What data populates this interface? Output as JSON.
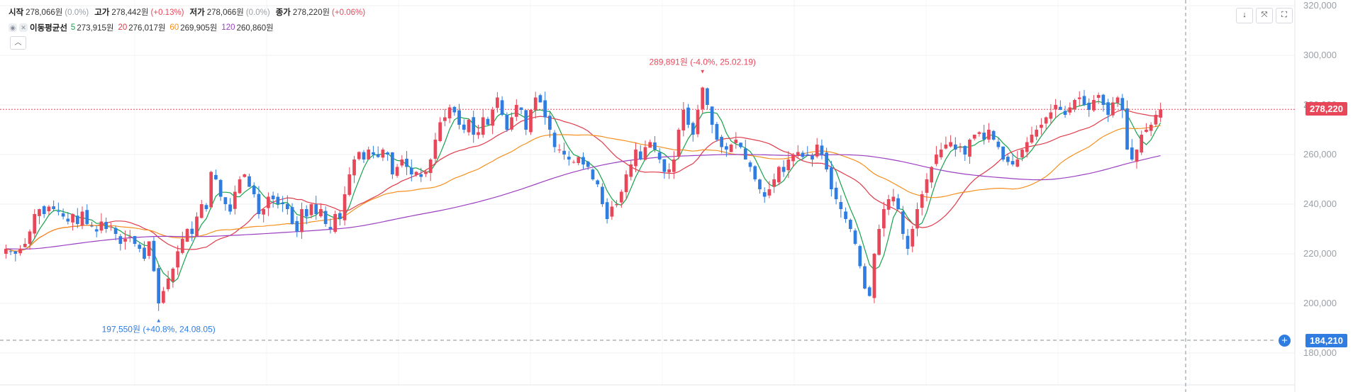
{
  "legend": {
    "open_label": "시작",
    "open_value": "278,066원",
    "open_change": "(0.0%)",
    "high_label": "고가",
    "high_value": "278,442원",
    "high_change": "(+0.13%)",
    "low_label": "저가",
    "low_value": "278,066원",
    "low_change": "(0.0%)",
    "close_label": "종가",
    "close_value": "278,220원",
    "close_change": "(+0.06%)"
  },
  "ma_legend": {
    "title": "이동평균선",
    "items": [
      {
        "period": "5",
        "value": "273,915원",
        "color": "#16a34a"
      },
      {
        "period": "20",
        "value": "276,017원",
        "color": "#e03b4a"
      },
      {
        "period": "60",
        "value": "269,905원",
        "color": "#f5901e"
      },
      {
        "period": "120",
        "value": "260,860원",
        "color": "#9b40c0"
      }
    ]
  },
  "toolbar": {
    "download_icon": "download-icon",
    "compress_icon": "compress-icon",
    "fullscreen_icon": "fullscreen-icon"
  },
  "price_axis": {
    "ticks": [
      "320,000",
      "300,000",
      "280,000",
      "260,000",
      "240,000",
      "220,000",
      "200,000",
      "180,000"
    ],
    "current_price": "278,220",
    "crosshair_price": "184,210"
  },
  "annotations": {
    "high": "289,891원 (-4.0%, 25.02.19)",
    "low": "197,550원 (+40.8%, 24.08.05)"
  },
  "colors": {
    "up": "#e8475a",
    "down": "#2f7de1"
  },
  "chart_data": {
    "type": "candlestick",
    "ylim": [
      170000,
      320000
    ],
    "closes": [
      222000,
      221000,
      220000,
      222000,
      224000,
      229000,
      236000,
      238000,
      236000,
      239000,
      238000,
      237000,
      235000,
      233000,
      236000,
      232000,
      237000,
      232000,
      231000,
      229000,
      233000,
      230000,
      231000,
      228000,
      224000,
      226000,
      227000,
      224000,
      222000,
      218000,
      225000,
      213000,
      200000,
      205000,
      210000,
      214000,
      221000,
      226000,
      230000,
      228000,
      235000,
      240000,
      238000,
      253000,
      250000,
      243000,
      240000,
      237000,
      245000,
      250000,
      252000,
      247000,
      244000,
      236000,
      238000,
      243000,
      242000,
      240000,
      240000,
      238000,
      232000,
      229000,
      238000,
      235000,
      240000,
      236000,
      238000,
      232000,
      230000,
      236000,
      234000,
      244000,
      252000,
      258000,
      261000,
      258000,
      262000,
      260000,
      259000,
      262000,
      260000,
      252000,
      255000,
      258000,
      255000,
      252000,
      253000,
      251000,
      253000,
      258000,
      266000,
      273000,
      275000,
      279000,
      277000,
      272000,
      270000,
      274000,
      268000,
      269000,
      275000,
      272000,
      278000,
      283000,
      276000,
      270000,
      275000,
      280000,
      278000,
      270000,
      278000,
      283000,
      281000,
      275000,
      270000,
      263000,
      262000,
      260000,
      258000,
      257000,
      259000,
      256000,
      255000,
      250000,
      248000,
      240000,
      234000,
      239000,
      240000,
      245000,
      252000,
      256000,
      262000,
      258000,
      263000,
      265000,
      262000,
      258000,
      253000,
      254000,
      258000,
      270000,
      278000,
      272000,
      268000,
      278000,
      287000,
      280000,
      272000,
      266000,
      263000,
      262000,
      264000,
      266000,
      263000,
      258000,
      255000,
      250000,
      246000,
      243000,
      246000,
      250000,
      255000,
      253000,
      258000,
      260000,
      261000,
      259000,
      260000,
      258000,
      264000,
      260000,
      254000,
      246000,
      242000,
      238000,
      234000,
      230000,
      224000,
      215000,
      206000,
      203000,
      220000,
      230000,
      238000,
      242000,
      243000,
      238000,
      228000,
      222000,
      230000,
      238000,
      244000,
      250000,
      255000,
      260000,
      262000,
      264000,
      265000,
      262000,
      263000,
      260000,
      266000,
      268000,
      269000,
      266000,
      270000,
      266000,
      263000,
      258000,
      257000,
      256000,
      258000,
      262000,
      265000,
      268000,
      270000,
      272000,
      275000,
      277000,
      280000,
      278000,
      276000,
      279000,
      282000,
      283000,
      280000,
      278000,
      282000,
      284000,
      280000,
      276000,
      281000,
      283000,
      278000,
      262000,
      258000,
      262000,
      268000,
      270000,
      272000,
      276000,
      278220
    ],
    "high_marker": {
      "price": 289891,
      "date": "25.02.19",
      "change": "-4.0%"
    },
    "low_marker": {
      "price": 197550,
      "date": "24.08.05",
      "change": "+40.8%"
    },
    "ma_periods": [
      5,
      20,
      60,
      120
    ],
    "grid": true
  }
}
